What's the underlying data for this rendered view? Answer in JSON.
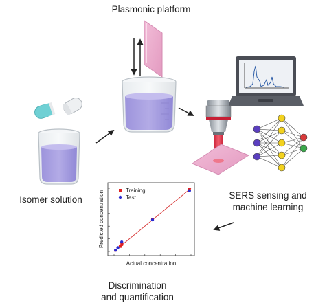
{
  "labels": {
    "plasmonic_platform": "Plasmonic platform",
    "isomer_solution": "Isomer solution",
    "sers_line1": "SERS sensing and",
    "sers_line2": "machine learning",
    "disc_line1": "Discrimination",
    "disc_line2": "and quantification"
  },
  "colors": {
    "liquid": "#a79fe0",
    "plasmonic": "#eaa9cb",
    "laser": "#e3223a",
    "laptop": "#4a4d55",
    "nn_input": "#5b3fbf",
    "nn_hidden": "#f3d21f",
    "nn_output_1": "#d93a3a",
    "nn_output_2": "#3aa84a",
    "capsule_cap": "#6fd0d4",
    "training": "#e02020",
    "test": "#2b2bd0",
    "fit_line": "#d83c3c"
  },
  "chart_data": {
    "type": "scatter",
    "xlabel": "Actual concentration",
    "ylabel": "Predicted concentration",
    "xlim": [
      0,
      1
    ],
    "ylim": [
      0,
      1
    ],
    "series": [
      {
        "name": "Training",
        "x": [
          0.02,
          0.08,
          0.1,
          0.5,
          0.98
        ],
        "y": [
          0.02,
          0.08,
          0.11,
          0.5,
          0.98
        ]
      },
      {
        "name": "Test",
        "x": [
          0.02,
          0.05,
          0.1,
          0.5,
          0.98
        ],
        "y": [
          0.02,
          0.06,
          0.15,
          0.5,
          0.96
        ]
      }
    ],
    "fit": {
      "x": [
        0.0,
        1.0
      ],
      "y": [
        0.0,
        1.0
      ]
    }
  }
}
